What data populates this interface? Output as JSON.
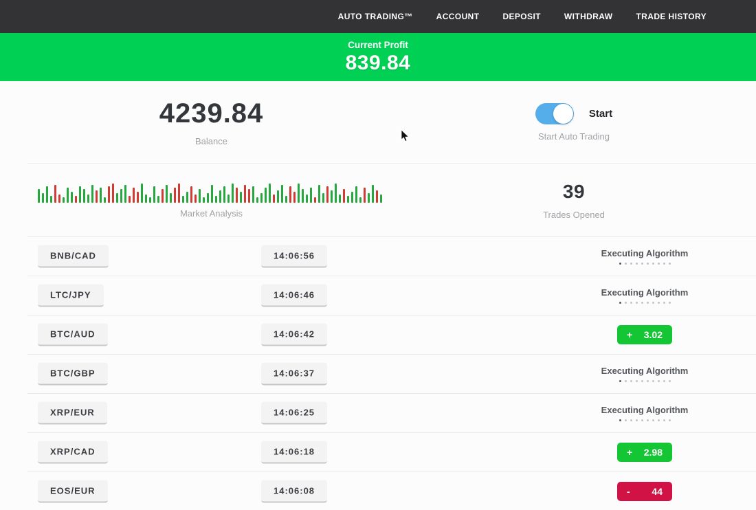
{
  "navbar": {
    "items": [
      {
        "label": "AUTO TRADING™"
      },
      {
        "label": "ACCOUNT"
      },
      {
        "label": "DEPOSIT"
      },
      {
        "label": "WITHDRAW"
      },
      {
        "label": "TRADE HISTORY"
      }
    ]
  },
  "profit_banner": {
    "label": "Current Profit",
    "value": "839.84"
  },
  "stats": {
    "balance": {
      "value": "4239.84",
      "label": "Balance"
    },
    "auto_trading": {
      "toggle_label": "Start",
      "label": "Start Auto Trading",
      "toggle_state": "on"
    },
    "market_analysis": {
      "label": "Market Analysis"
    },
    "trades_opened": {
      "value": "39",
      "label": "Trades Opened"
    }
  },
  "colors": {
    "navbar_bg": "#333234",
    "banner_green": "#00d154",
    "profit_badge_green": "#14c633",
    "loss_badge_red": "#d01245",
    "toggle_blue": "#55aeea",
    "bar_green": "#25a93f",
    "bar_red": "#d23b34"
  },
  "chart_data": {
    "type": "bar",
    "title": "Market Analysis",
    "xlabel": "",
    "ylabel": "",
    "note": "decorative candlestick-style strip; h = bar height px (8-30), c = color g(green)/r(red)",
    "bars": [
      [
        20,
        "g"
      ],
      [
        14,
        "g"
      ],
      [
        24,
        "g"
      ],
      [
        10,
        "g"
      ],
      [
        26,
        "r"
      ],
      [
        12,
        "r"
      ],
      [
        8,
        "g"
      ],
      [
        22,
        "g"
      ],
      [
        16,
        "g"
      ],
      [
        10,
        "r"
      ],
      [
        24,
        "g"
      ],
      [
        20,
        "g"
      ],
      [
        12,
        "g"
      ],
      [
        26,
        "g"
      ],
      [
        18,
        "r"
      ],
      [
        22,
        "g"
      ],
      [
        8,
        "g"
      ],
      [
        24,
        "r"
      ],
      [
        28,
        "r"
      ],
      [
        14,
        "g"
      ],
      [
        20,
        "g"
      ],
      [
        26,
        "g"
      ],
      [
        10,
        "r"
      ],
      [
        22,
        "r"
      ],
      [
        16,
        "r"
      ],
      [
        28,
        "g"
      ],
      [
        12,
        "g"
      ],
      [
        8,
        "g"
      ],
      [
        24,
        "g"
      ],
      [
        10,
        "g"
      ],
      [
        20,
        "r"
      ],
      [
        26,
        "g"
      ],
      [
        14,
        "g"
      ],
      [
        22,
        "r"
      ],
      [
        28,
        "r"
      ],
      [
        10,
        "g"
      ],
      [
        16,
        "g"
      ],
      [
        24,
        "r"
      ],
      [
        12,
        "r"
      ],
      [
        20,
        "g"
      ],
      [
        8,
        "g"
      ],
      [
        14,
        "g"
      ],
      [
        26,
        "g"
      ],
      [
        10,
        "g"
      ],
      [
        18,
        "g"
      ],
      [
        24,
        "g"
      ],
      [
        12,
        "g"
      ],
      [
        28,
        "g"
      ],
      [
        22,
        "r"
      ],
      [
        16,
        "g"
      ],
      [
        26,
        "r"
      ],
      [
        20,
        "r"
      ],
      [
        24,
        "g"
      ],
      [
        8,
        "g"
      ],
      [
        14,
        "g"
      ],
      [
        22,
        "g"
      ],
      [
        28,
        "g"
      ],
      [
        12,
        "r"
      ],
      [
        18,
        "g"
      ],
      [
        26,
        "g"
      ],
      [
        10,
        "g"
      ],
      [
        24,
        "r"
      ],
      [
        16,
        "r"
      ],
      [
        28,
        "g"
      ],
      [
        20,
        "g"
      ],
      [
        12,
        "g"
      ],
      [
        22,
        "g"
      ],
      [
        8,
        "r"
      ],
      [
        26,
        "g"
      ],
      [
        14,
        "g"
      ],
      [
        24,
        "r"
      ],
      [
        18,
        "g"
      ],
      [
        28,
        "g"
      ],
      [
        12,
        "g"
      ],
      [
        20,
        "r"
      ],
      [
        10,
        "g"
      ],
      [
        16,
        "g"
      ],
      [
        24,
        "g"
      ],
      [
        8,
        "g"
      ],
      [
        22,
        "r"
      ],
      [
        14,
        "g"
      ],
      [
        26,
        "g"
      ],
      [
        18,
        "r"
      ],
      [
        12,
        "g"
      ]
    ]
  },
  "executing_dots_count": 10,
  "trades": [
    {
      "pair": "BNB/CAD",
      "time": "14:06:56",
      "status": {
        "type": "executing",
        "label": "Executing Algorithm"
      }
    },
    {
      "pair": "LTC/JPY",
      "time": "14:06:46",
      "status": {
        "type": "executing",
        "label": "Executing Algorithm"
      }
    },
    {
      "pair": "BTC/AUD",
      "time": "14:06:42",
      "status": {
        "type": "profit",
        "sign": "+",
        "value": "3.02"
      }
    },
    {
      "pair": "BTC/GBP",
      "time": "14:06:37",
      "status": {
        "type": "executing",
        "label": "Executing Algorithm"
      }
    },
    {
      "pair": "XRP/EUR",
      "time": "14:06:25",
      "status": {
        "type": "executing",
        "label": "Executing Algorithm"
      }
    },
    {
      "pair": "XRP/CAD",
      "time": "14:06:18",
      "status": {
        "type": "profit",
        "sign": "+",
        "value": "2.98"
      }
    },
    {
      "pair": "EOS/EUR",
      "time": "14:06:08",
      "status": {
        "type": "loss",
        "sign": "-",
        "value": "44"
      }
    }
  ]
}
